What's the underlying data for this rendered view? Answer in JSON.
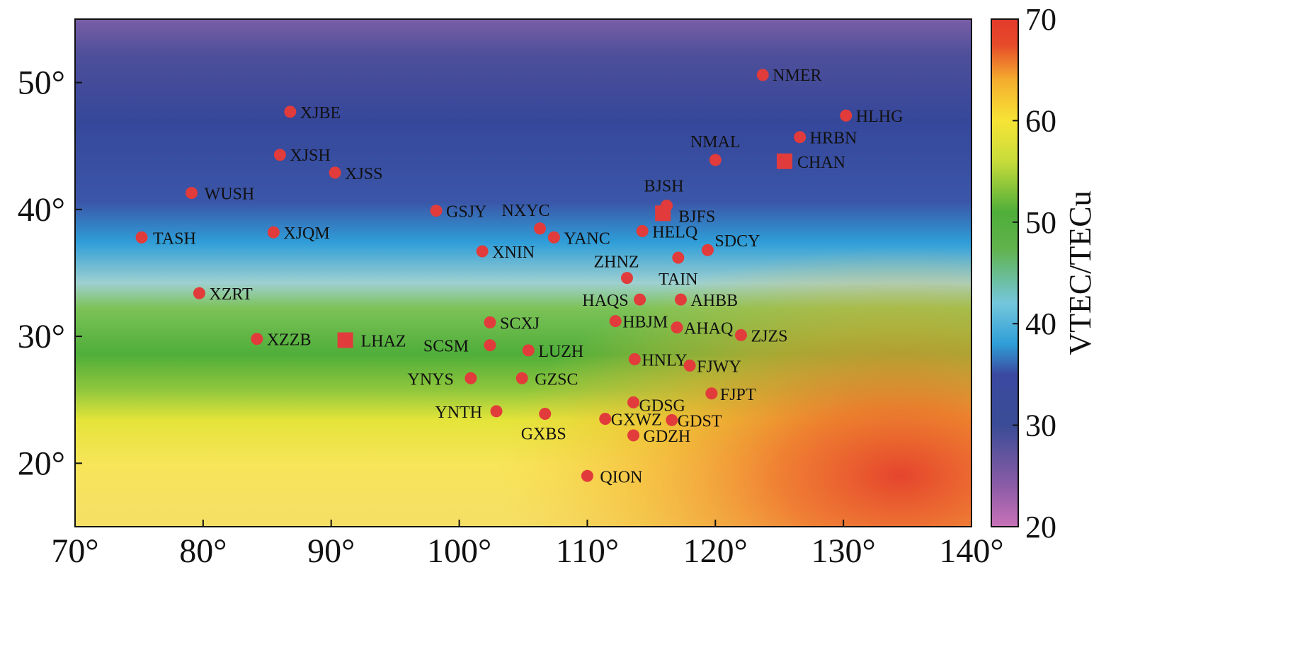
{
  "chart_data": {
    "type": "scatter",
    "title": "",
    "xlabel": "",
    "ylabel": "",
    "xlim": [
      70,
      140
    ],
    "ylim": [
      15,
      55
    ],
    "x_ticks": [
      {
        "value": 70,
        "label": "70°"
      },
      {
        "value": 80,
        "label": "80°"
      },
      {
        "value": 90,
        "label": "90°"
      },
      {
        "value": 100,
        "label": "100°"
      },
      {
        "value": 110,
        "label": "110°"
      },
      {
        "value": 120,
        "label": "120°"
      },
      {
        "value": 130,
        "label": "130°"
      },
      {
        "value": 140,
        "label": "140°"
      }
    ],
    "y_ticks": [
      {
        "value": 20,
        "label": "20°"
      },
      {
        "value": 30,
        "label": "30°"
      },
      {
        "value": 40,
        "label": "40°"
      },
      {
        "value": 50,
        "label": "50°"
      }
    ],
    "background": "VTEC map",
    "colorbar": {
      "label": "VTEC/TECu",
      "range": [
        20,
        70
      ],
      "ticks": [
        {
          "value": 20,
          "label": "20"
        },
        {
          "value": 30,
          "label": "30"
        },
        {
          "value": 40,
          "label": "40"
        },
        {
          "value": 50,
          "label": "50"
        },
        {
          "value": 60,
          "label": "60"
        },
        {
          "value": 70,
          "label": "70"
        }
      ],
      "colors": [
        "#c872b8",
        "#8c5ca6",
        "#3a4c96",
        "#3b4aa0",
        "#2f9ed8",
        "#74c7dc",
        "#60b24a",
        "#4fae3a",
        "#c8dc3a",
        "#f7e436",
        "#f4ad2e",
        "#e64a2a",
        "#e23a2a"
      ]
    },
    "marker_color": "#e23b3b",
    "stations": [
      {
        "name": "NMER",
        "lon": 123.7,
        "lat": 50.6,
        "marker": "circle"
      },
      {
        "name": "XJBE",
        "lon": 86.8,
        "lat": 47.7,
        "marker": "circle"
      },
      {
        "name": "HLHG",
        "lon": 130.2,
        "lat": 47.4,
        "marker": "circle"
      },
      {
        "name": "HRBN",
        "lon": 126.6,
        "lat": 45.7,
        "marker": "circle"
      },
      {
        "name": "XJSH",
        "lon": 86.0,
        "lat": 44.3,
        "marker": "circle"
      },
      {
        "name": "NMAL",
        "lon": 120.0,
        "lat": 43.9,
        "marker": "circle"
      },
      {
        "name": "CHAN",
        "lon": 125.4,
        "lat": 43.8,
        "marker": "square"
      },
      {
        "name": "XJSS",
        "lon": 90.3,
        "lat": 42.9,
        "marker": "circle"
      },
      {
        "name": "WUSH",
        "lon": 79.1,
        "lat": 41.3,
        "marker": "circle"
      },
      {
        "name": "BJSH",
        "lon": 116.2,
        "lat": 40.3,
        "marker": "circle"
      },
      {
        "name": "GSJY",
        "lon": 98.2,
        "lat": 39.9,
        "marker": "circle"
      },
      {
        "name": "BJFS",
        "lon": 115.9,
        "lat": 39.7,
        "marker": "square"
      },
      {
        "name": "NXYC",
        "lon": 106.3,
        "lat": 38.5,
        "marker": "circle"
      },
      {
        "name": "HELQ",
        "lon": 114.3,
        "lat": 38.3,
        "marker": "circle"
      },
      {
        "name": "XJQM",
        "lon": 85.5,
        "lat": 38.2,
        "marker": "circle"
      },
      {
        "name": "TASH",
        "lon": 75.2,
        "lat": 37.8,
        "marker": "circle"
      },
      {
        "name": "YANC",
        "lon": 107.4,
        "lat": 37.8,
        "marker": "circle"
      },
      {
        "name": "SDCY",
        "lon": 119.4,
        "lat": 36.8,
        "marker": "circle"
      },
      {
        "name": "XNIN",
        "lon": 101.8,
        "lat": 36.7,
        "marker": "circle"
      },
      {
        "name": "TAIN",
        "lon": 117.1,
        "lat": 36.2,
        "marker": "circle"
      },
      {
        "name": "ZHNZ",
        "lon": 113.1,
        "lat": 34.6,
        "marker": "circle"
      },
      {
        "name": "XZRT",
        "lon": 79.7,
        "lat": 33.4,
        "marker": "circle"
      },
      {
        "name": "HAQS",
        "lon": 114.1,
        "lat": 32.9,
        "marker": "circle"
      },
      {
        "name": "AHBB",
        "lon": 117.3,
        "lat": 32.9,
        "marker": "circle"
      },
      {
        "name": "HBJM",
        "lon": 112.2,
        "lat": 31.2,
        "marker": "circle"
      },
      {
        "name": "SCXJ",
        "lon": 102.4,
        "lat": 31.1,
        "marker": "circle"
      },
      {
        "name": "AHAQ",
        "lon": 117.0,
        "lat": 30.7,
        "marker": "circle"
      },
      {
        "name": "ZJZS",
        "lon": 122.0,
        "lat": 30.1,
        "marker": "circle"
      },
      {
        "name": "XZZB",
        "lon": 84.2,
        "lat": 29.8,
        "marker": "circle"
      },
      {
        "name": "LHAZ",
        "lon": 91.1,
        "lat": 29.7,
        "marker": "square"
      },
      {
        "name": "SCSM",
        "lon": 102.4,
        "lat": 29.3,
        "marker": "circle"
      },
      {
        "name": "LUZH",
        "lon": 105.4,
        "lat": 28.9,
        "marker": "circle"
      },
      {
        "name": "HNLY",
        "lon": 113.7,
        "lat": 28.2,
        "marker": "circle"
      },
      {
        "name": "FJWY",
        "lon": 118.0,
        "lat": 27.7,
        "marker": "circle"
      },
      {
        "name": "YNYS",
        "lon": 100.9,
        "lat": 26.7,
        "marker": "circle"
      },
      {
        "name": "GZSC",
        "lon": 104.9,
        "lat": 26.7,
        "marker": "circle"
      },
      {
        "name": "FJPT",
        "lon": 119.7,
        "lat": 25.5,
        "marker": "circle"
      },
      {
        "name": "GDSG",
        "lon": 113.6,
        "lat": 24.8,
        "marker": "circle"
      },
      {
        "name": "YNTH",
        "lon": 102.9,
        "lat": 24.1,
        "marker": "circle"
      },
      {
        "name": "GXBS",
        "lon": 106.7,
        "lat": 23.9,
        "marker": "circle"
      },
      {
        "name": "GXWZ",
        "lon": 111.4,
        "lat": 23.5,
        "marker": "circle"
      },
      {
        "name": "GDST",
        "lon": 116.6,
        "lat": 23.4,
        "marker": "circle"
      },
      {
        "name": "GDZH",
        "lon": 113.6,
        "lat": 22.2,
        "marker": "circle"
      },
      {
        "name": "QION",
        "lon": 110.0,
        "lat": 19.0,
        "marker": "circle"
      }
    ]
  }
}
